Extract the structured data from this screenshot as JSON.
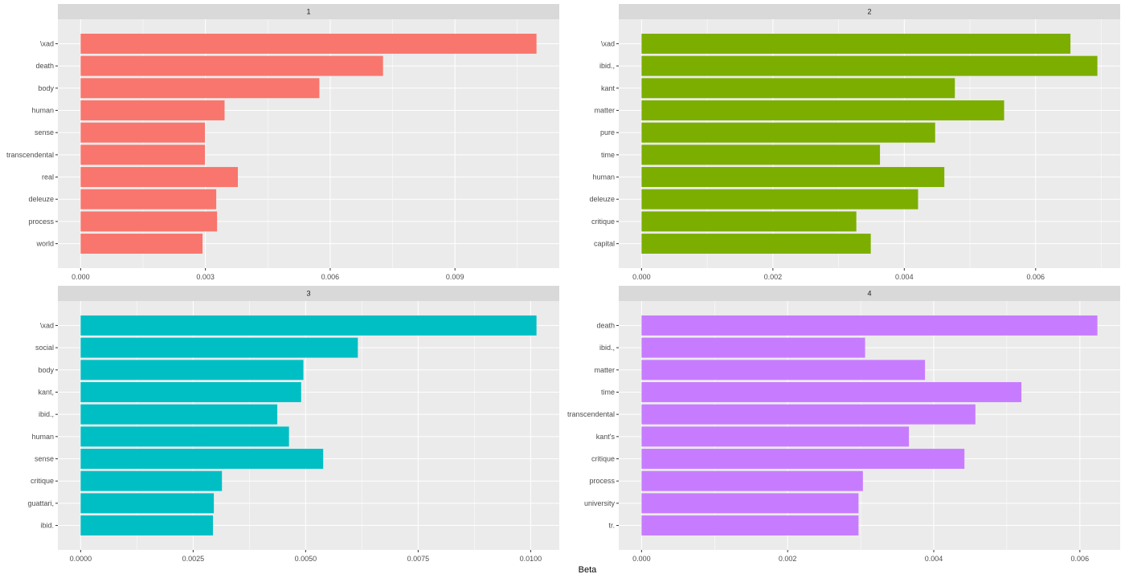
{
  "chart_data": {
    "type": "bar",
    "orientation": "horizontal",
    "xlabel": "Beta",
    "grid": true,
    "facets": [
      {
        "title": "1",
        "color": "#F8766D",
        "categories": [
          "\\xad",
          "death",
          "body",
          "human",
          "sense",
          "transcendental",
          "real",
          "deleuze",
          "process",
          "world"
        ],
        "values": [
          0.01096,
          0.00727,
          0.00574,
          0.00346,
          0.00299,
          0.00299,
          0.00378,
          0.00326,
          0.00328,
          0.00293
        ],
        "ticks": [
          0,
          0.003,
          0.006,
          0.009
        ],
        "tick_labels": [
          "0.000",
          "0.003",
          "0.006",
          "0.009"
        ]
      },
      {
        "title": "2",
        "color": "#7CAE00",
        "categories": [
          "\\xad",
          "ibid.,",
          "kant",
          "matter",
          "pure",
          "time",
          "human",
          "deleuze",
          "critique",
          "capital"
        ],
        "values": [
          0.00653,
          0.00694,
          0.00477,
          0.00552,
          0.00447,
          0.00363,
          0.00461,
          0.00421,
          0.00327,
          0.00349
        ],
        "ticks": [
          0,
          0.002,
          0.004,
          0.006
        ],
        "tick_labels": [
          "0.000",
          "0.002",
          "0.004",
          "0.006"
        ]
      },
      {
        "title": "3",
        "color": "#00BFC4",
        "categories": [
          "\\xad",
          "social",
          "body",
          "kant,",
          "ibid.,",
          "human",
          "sense",
          "critique",
          "guattari,",
          "ibid."
        ],
        "values": [
          0.01013,
          0.00616,
          0.00495,
          0.0049,
          0.00437,
          0.00463,
          0.00539,
          0.00314,
          0.00296,
          0.00294
        ],
        "ticks": [
          0,
          0.0025,
          0.005,
          0.0075,
          0.01
        ],
        "tick_labels": [
          "0.0000",
          "0.0025",
          "0.0050",
          "0.0075",
          "0.0100"
        ]
      },
      {
        "title": "4",
        "color": "#C77CFF",
        "categories": [
          "death",
          "ibid.,",
          "matter",
          "time",
          "transcendental",
          "kant's",
          "critique",
          "process",
          "university",
          "tr."
        ],
        "values": [
          0.00624,
          0.00306,
          0.00388,
          0.0052,
          0.00457,
          0.00366,
          0.00442,
          0.00303,
          0.00297,
          0.00297
        ],
        "ticks": [
          0,
          0.002,
          0.004,
          0.006
        ],
        "tick_labels": [
          "0.000",
          "0.002",
          "0.004",
          "0.006"
        ]
      }
    ]
  }
}
